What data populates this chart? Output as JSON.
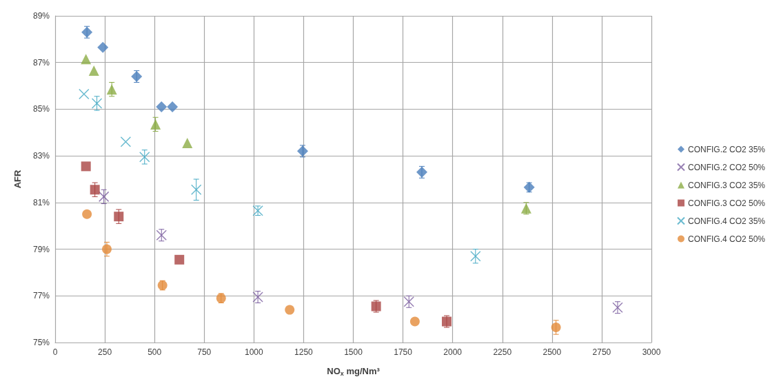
{
  "chart_data": {
    "type": "scatter",
    "xlabel": "NO$_{x}$ mg/Nm³",
    "ylabel": "AFR",
    "xlim": [
      0,
      3000
    ],
    "xticks": [
      0,
      250,
      500,
      750,
      1000,
      1250,
      1500,
      1750,
      2000,
      2250,
      2500,
      2750,
      3000
    ],
    "ylim": [
      75,
      89
    ],
    "yticks": [
      {
        "value": 75,
        "label": "75%"
      },
      {
        "value": 77,
        "label": "77%"
      },
      {
        "value": 79,
        "label": "79%"
      },
      {
        "value": 81,
        "label": "81%"
      },
      {
        "value": 83,
        "label": "83%"
      },
      {
        "value": 85,
        "label": "85%"
      },
      {
        "value": 87,
        "label": "87%"
      },
      {
        "value": 89,
        "label": "89%"
      }
    ],
    "grid": true,
    "legend": "right",
    "series": [
      {
        "name": "CONFIG.2 CO2 35%",
        "color": "#4a7ebb",
        "marker": "diamond",
        "x": [
          160,
          240,
          410,
          535,
          590,
          1245,
          1845,
          2385
        ],
        "values": [
          88.3,
          87.65,
          86.4,
          85.1,
          85.1,
          83.2,
          82.3,
          81.65
        ],
        "errors": [
          0.25,
          null,
          0.25,
          null,
          null,
          0.25,
          0.25,
          0.2
        ]
      },
      {
        "name": "CONFIG.2 CO2 50%",
        "color": "#7d60a0",
        "marker": "cross",
        "x": [
          245,
          535,
          1020,
          1780,
          2830
        ],
        "values": [
          81.25,
          79.6,
          76.95,
          76.75,
          76.5
        ],
        "errors": [
          0.3,
          0.25,
          0.25,
          0.25,
          0.25
        ]
      },
      {
        "name": "CONFIG.3 CO2 35%",
        "color": "#8cac46",
        "marker": "triangle",
        "x": [
          155,
          195,
          285,
          505,
          665,
          2370
        ],
        "values": [
          87.15,
          86.65,
          85.85,
          84.35,
          83.55,
          80.75
        ],
        "errors": [
          null,
          null,
          0.3,
          0.3,
          null,
          0.25
        ]
      },
      {
        "name": "CONFIG.3 CO2 50%",
        "color": "#a94442",
        "marker": "square",
        "x": [
          155,
          200,
          320,
          625,
          1615,
          1970
        ],
        "values": [
          82.55,
          81.55,
          80.4,
          78.55,
          76.55,
          75.9
        ],
        "errors": [
          null,
          0.3,
          0.3,
          null,
          0.25,
          0.25
        ]
      },
      {
        "name": "CONFIG.4 CO2 35%",
        "color": "#46aac4",
        "marker": "cross",
        "x": [
          145,
          210,
          355,
          450,
          710,
          1020,
          2115
        ],
        "values": [
          85.65,
          85.25,
          83.6,
          82.95,
          81.55,
          80.65,
          78.7
        ],
        "errors": [
          null,
          0.3,
          null,
          0.3,
          0.45,
          0.2,
          0.3
        ]
      },
      {
        "name": "CONFIG.4 CO2 50%",
        "color": "#e38b3a",
        "marker": "circle",
        "x": [
          160,
          260,
          540,
          835,
          1180,
          1810,
          2520
        ],
        "values": [
          80.5,
          79.0,
          77.45,
          76.9,
          76.4,
          75.9,
          75.65
        ],
        "errors": [
          null,
          0.3,
          0.2,
          0.2,
          null,
          null,
          0.3
        ]
      }
    ]
  }
}
